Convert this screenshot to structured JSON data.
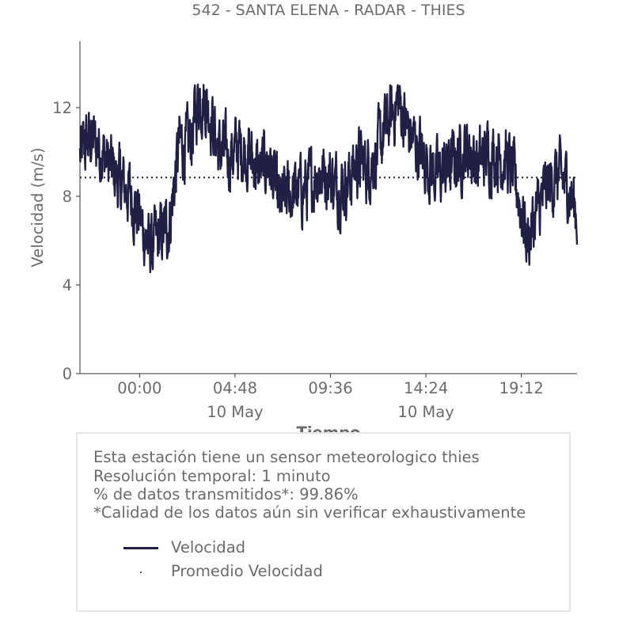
{
  "title": "542 - SANTA ELENA - RADAR - THIES",
  "chart_data": {
    "type": "line",
    "title": "542 - SANTA ELENA - RADAR - THIES",
    "xlabel": "Tiempo",
    "ylabel": "Velocidad (m/s)",
    "ylim": [
      0,
      15
    ],
    "yticks": [
      0,
      4,
      8,
      12
    ],
    "xticks": [
      {
        "label": "00:00",
        "sub": ""
      },
      {
        "label": "04:48",
        "sub": "10 May"
      },
      {
        "label": "09:36",
        "sub": ""
      },
      {
        "label": "14:24",
        "sub": "10 May"
      },
      {
        "label": "19:12",
        "sub": ""
      }
    ],
    "series": [
      {
        "name": "Velocidad",
        "color": "#1f2044",
        "style": "solid",
        "x": [
          "21:00",
          "21:30",
          "22:00",
          "22:30",
          "23:00",
          "23:30",
          "00:00",
          "00:30",
          "01:00",
          "01:30",
          "02:00",
          "02:30",
          "03:00",
          "03:30",
          "04:00",
          "04:30",
          "05:00",
          "05:30",
          "06:00",
          "06:30",
          "07:00",
          "07:30",
          "08:00",
          "08:30",
          "09:00",
          "09:30",
          "10:00",
          "10:30",
          "11:00",
          "11:30",
          "12:00",
          "12:30",
          "13:00",
          "13:30",
          "14:00",
          "14:30",
          "15:00",
          "15:30",
          "16:00",
          "16:30",
          "17:00",
          "17:30",
          "18:00",
          "18:30",
          "19:00",
          "19:30",
          "20:00",
          "20:30",
          "21:00",
          "21:30",
          "22:00"
        ],
        "values": [
          9.8,
          10.6,
          10.2,
          9.3,
          8.6,
          8.2,
          7.0,
          5.6,
          6.1,
          6.8,
          10.4,
          10.2,
          12.6,
          12.0,
          10.0,
          9.8,
          10.2,
          9.9,
          9.1,
          9.7,
          7.6,
          8.1,
          8.2,
          8.4,
          9.1,
          9.0,
          8.4,
          8.7,
          9.6,
          9.3,
          10.1,
          11.3,
          12.3,
          11.0,
          10.2,
          9.5,
          8.9,
          9.3,
          9.7,
          10.2,
          9.4,
          10.0,
          9.9,
          9.6,
          8.3,
          6.0,
          7.3,
          8.4,
          8.9,
          8.6,
          7.2
        ]
      },
      {
        "name": "Promedio Velocidad",
        "color": "#1f2044",
        "style": "dotted",
        "values": [
          8.85
        ]
      }
    ]
  },
  "info": {
    "line1": "Esta estación tiene un sensor meteorologico thies",
    "line2": "Resolución temporal: 1 minuto",
    "line3": "% de datos transmitidos*: 99.86%",
    "line4": "*Calidad de los datos aún sin verificar exhaustivamente"
  },
  "legend": {
    "item1": "Velocidad",
    "item2": "Promedio Velocidad"
  }
}
